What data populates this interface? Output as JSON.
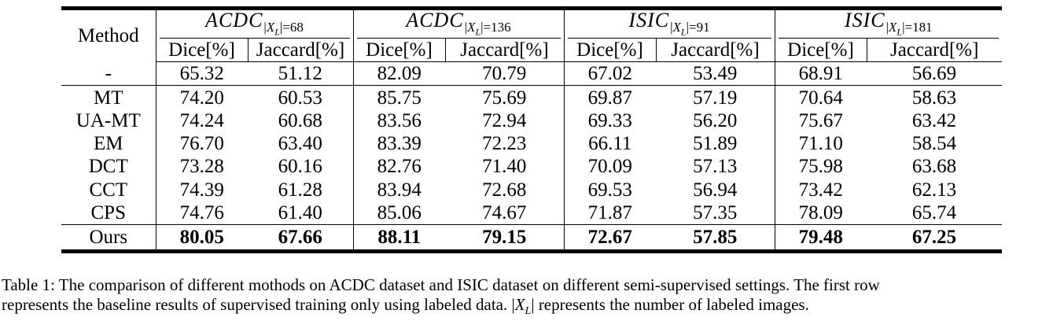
{
  "table": {
    "method_header": "Method",
    "groups": [
      {
        "dataset": "ACDC",
        "subscript": "68"
      },
      {
        "dataset": "ACDC",
        "subscript": "136"
      },
      {
        "dataset": "ISIC",
        "subscript": "91"
      },
      {
        "dataset": "ISIC",
        "subscript": "181"
      }
    ],
    "metrics": [
      "Dice[%]",
      "Jaccard[%]"
    ],
    "baseline": {
      "method": "-",
      "values": [
        "65.32",
        "51.12",
        "82.09",
        "70.79",
        "67.02",
        "53.49",
        "68.91",
        "56.69"
      ]
    },
    "rows": [
      {
        "method": "MT",
        "values": [
          "74.20",
          "60.53",
          "85.75",
          "75.69",
          "69.87",
          "57.19",
          "70.64",
          "58.63"
        ]
      },
      {
        "method": "UA-MT",
        "values": [
          "74.24",
          "60.68",
          "83.56",
          "72.94",
          "69.33",
          "56.20",
          "75.67",
          "63.42"
        ]
      },
      {
        "method": "EM",
        "values": [
          "76.70",
          "63.40",
          "83.39",
          "72.23",
          "66.11",
          "51.89",
          "71.10",
          "58.54"
        ]
      },
      {
        "method": "DCT",
        "values": [
          "73.28",
          "60.16",
          "82.76",
          "71.40",
          "70.09",
          "57.13",
          "75.98",
          "63.68"
        ]
      },
      {
        "method": "CCT",
        "values": [
          "74.39",
          "61.28",
          "83.94",
          "72.68",
          "69.53",
          "56.94",
          "73.42",
          "62.13"
        ]
      },
      {
        "method": "CPS",
        "values": [
          "74.76",
          "61.40",
          "85.06",
          "74.67",
          "71.87",
          "57.35",
          "78.09",
          "65.74"
        ]
      }
    ],
    "ours": {
      "method": "Ours",
      "values": [
        "80.05",
        "67.66",
        "88.11",
        "79.15",
        "72.67",
        "57.85",
        "79.48",
        "67.25"
      ]
    }
  },
  "caption": {
    "line1": "Table 1: The comparison of different mothods on ACDC dataset and ISIC dataset on different semi-supervised settings. The first row",
    "line2_before": "represents the baseline results of supervised training only using labeled data.",
    "line2_after": "represents the number of labeled images."
  }
}
